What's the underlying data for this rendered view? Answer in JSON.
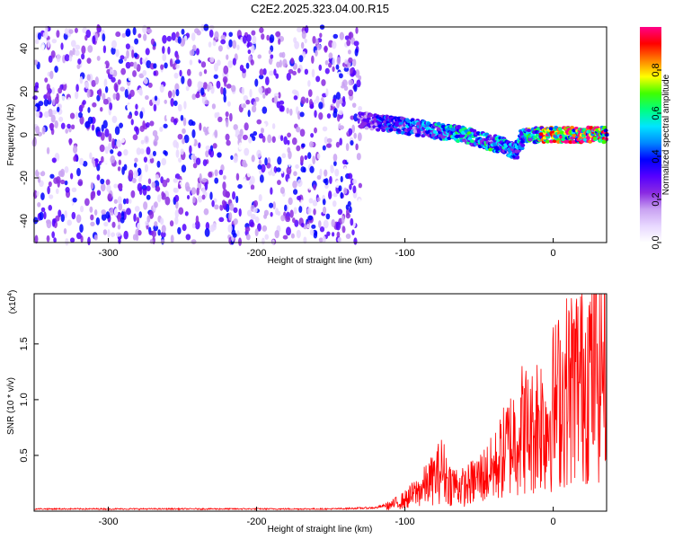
{
  "chart_data": [
    {
      "type": "heatmap",
      "title": "C2E2.2025.323.04.00.R15",
      "xlabel": "Height of straight line (km)",
      "ylabel": "Frequency (Hz)",
      "xlim": [
        -350,
        36
      ],
      "ylim": [
        -50,
        50
      ],
      "xticks": [
        -300,
        -200,
        -100,
        0
      ],
      "yticks": [
        -40,
        -20,
        0,
        20,
        40
      ],
      "colorbar": {
        "label": "Normalized spectral amplitude",
        "range": [
          0,
          1
        ],
        "ticks": [
          0.0,
          0.2,
          0.4,
          0.6,
          0.8
        ],
        "colormap": [
          "#ffffff",
          "#e8d8ff",
          "#c9a2f2",
          "#8a2be2",
          "#5500ff",
          "#0000ff",
          "#0088ff",
          "#00e5ff",
          "#00ff80",
          "#40ff00",
          "#ffff00",
          "#ff8000",
          "#ff0000",
          "#ff0088"
        ]
      },
      "noise_region": {
        "x_from": -350,
        "x_to": -130,
        "description_level": 0.25
      },
      "signal_ridge": {
        "x": [
          -130,
          -120,
          -110,
          -100,
          -90,
          -80,
          -70,
          -60,
          -50,
          -40,
          -30,
          -25,
          -20,
          -10,
          0,
          10,
          20,
          30,
          36
        ],
        "freq": [
          7,
          6,
          5,
          4,
          3,
          2,
          1,
          0,
          -2,
          -4,
          -6,
          -8,
          0,
          0,
          0,
          0,
          0,
          0,
          0
        ],
        "amplitude": [
          0.25,
          0.35,
          0.4,
          0.38,
          0.42,
          0.45,
          0.5,
          0.55,
          0.5,
          0.55,
          0.45,
          0.4,
          0.5,
          0.7,
          0.85,
          0.9,
          0.9,
          0.9,
          0.85
        ]
      }
    },
    {
      "type": "line",
      "xlabel": "Height of straight line (km)",
      "ylabel": "SNR (10 * v/v)",
      "multiplier_label": "(x10",
      "multiplier_exp": "4",
      "xlim": [
        -350,
        36
      ],
      "ylim": [
        0,
        1.95
      ],
      "xticks": [
        -300,
        -200,
        -100,
        0
      ],
      "yticks": [
        0.5,
        1.0,
        1.5
      ],
      "line_color": "#ff0000",
      "series": [
        {
          "name": "SNR",
          "x": [
            -350,
            -300,
            -250,
            -200,
            -150,
            -120,
            -110,
            -100,
            -90,
            -80,
            -75,
            -70,
            -60,
            -50,
            -40,
            -30,
            -20,
            -15,
            -10,
            -5,
            0,
            10,
            20,
            30,
            36
          ],
          "y": [
            0.02,
            0.02,
            0.02,
            0.02,
            0.02,
            0.03,
            0.06,
            0.12,
            0.22,
            0.35,
            0.45,
            0.3,
            0.25,
            0.35,
            0.45,
            0.7,
            0.9,
            0.8,
            1.0,
            0.9,
            1.1,
            1.3,
            1.45,
            1.55,
            1.65
          ]
        }
      ]
    }
  ]
}
